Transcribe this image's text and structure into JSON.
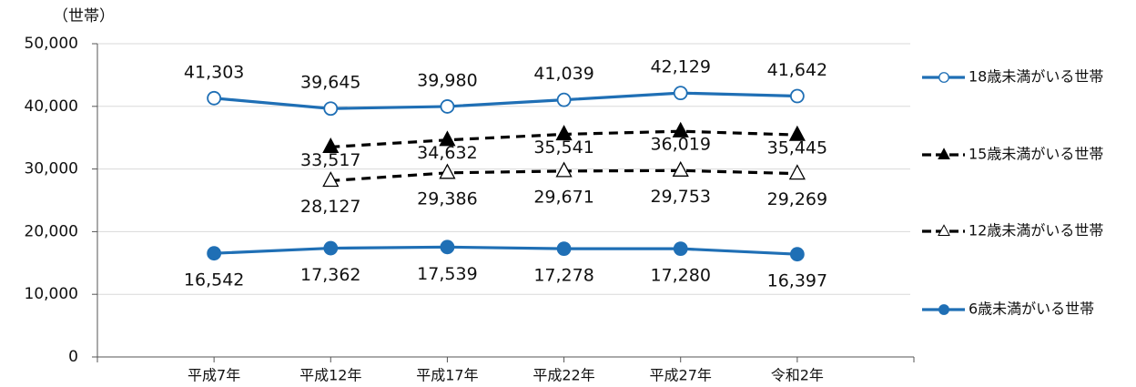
{
  "chart_data": {
    "type": "line",
    "y_axis_label": "（世帯）",
    "categories": [
      "平成7年",
      "平成12年",
      "平成17年",
      "平成22年",
      "平成27年",
      "令和2年"
    ],
    "ylim": [
      0,
      50000
    ],
    "yticks": [
      {
        "value": 0,
        "label": "0"
      },
      {
        "value": 10000,
        "label": "10,000"
      },
      {
        "value": 20000,
        "label": "20,000"
      },
      {
        "value": 30000,
        "label": "30,000"
      },
      {
        "value": 40000,
        "label": "40,000"
      },
      {
        "value": 50000,
        "label": "50,000"
      }
    ],
    "grid": true,
    "legend": "right",
    "series": [
      {
        "name": "18歳未満がいる世帯",
        "color": "#1f6fb5",
        "marker": "circle",
        "marker_fill": "#ffffff",
        "dashed": false,
        "values": [
          41303,
          39645,
          39980,
          41039,
          42129,
          41642
        ],
        "value_labels": [
          "41,303",
          "39,645",
          "39,980",
          "41,039",
          "42,129",
          "41,642"
        ]
      },
      {
        "name": "15歳未満がいる世帯",
        "color": "#000000",
        "marker": "triangle",
        "marker_fill": "#000000",
        "dashed": true,
        "values": [
          null,
          33517,
          34632,
          35541,
          36019,
          35445
        ],
        "value_labels": [
          null,
          "33,517",
          "34,632",
          "35,541",
          "36,019",
          "35,445"
        ]
      },
      {
        "name": "12歳未満がいる世帯",
        "color": "#000000",
        "marker": "triangle",
        "marker_fill": "#ffffff",
        "dashed": true,
        "values": [
          null,
          28127,
          29386,
          29671,
          29753,
          29269
        ],
        "value_labels": [
          null,
          "28,127",
          "29,386",
          "29,671",
          "29,753",
          "29,269"
        ]
      },
      {
        "name": "6歳未満がいる世帯",
        "color": "#1f6fb5",
        "marker": "circle",
        "marker_fill": "#1f6fb5",
        "dashed": false,
        "values": [
          16542,
          17362,
          17539,
          17278,
          17280,
          16397
        ],
        "value_labels": [
          "16,542",
          "17,362",
          "17,539",
          "17,278",
          "17,280",
          "16,397"
        ]
      }
    ]
  }
}
